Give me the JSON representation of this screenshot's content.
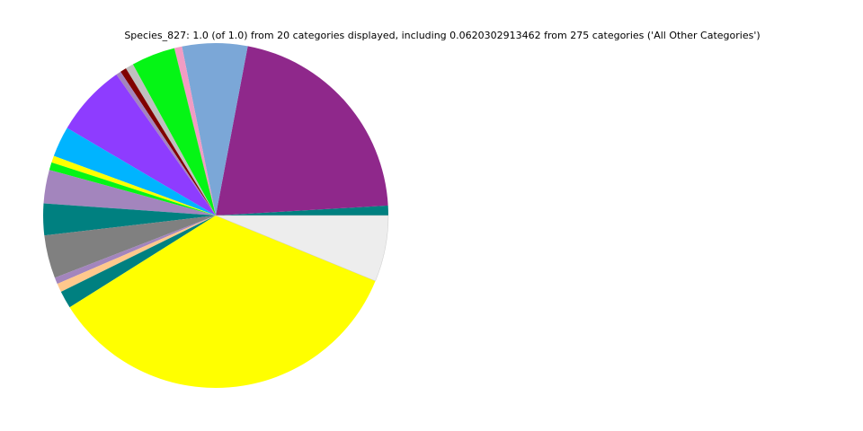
{
  "chart_data": {
    "type": "pie",
    "title": "Species_827: 1.0 (of 1.0) from 20 categories displayed, including 0.0620302913462 from 275 categories ('All Other Categories')",
    "start_angle_deg": 0,
    "direction": "counterclockwise",
    "legend": "none",
    "slices": [
      {
        "value": 0.0092,
        "color": "#008080"
      },
      {
        "value": 0.2111,
        "color": "#8f288b"
      },
      {
        "value": 0.0611,
        "color": "#7ba7d7"
      },
      {
        "value": 0.0072,
        "color": "#f19cc3"
      },
      {
        "value": 0.0411,
        "color": "#05f515"
      },
      {
        "value": 0.0075,
        "color": "#c0c0c0"
      },
      {
        "value": 0.0058,
        "color": "#800000"
      },
      {
        "value": 0.0047,
        "color": "#a385bd"
      },
      {
        "value": 0.0675,
        "color": "#8e3cff"
      },
      {
        "value": 0.0286,
        "color": "#00b4ff"
      },
      {
        "value": 0.0064,
        "color": "#ffff00"
      },
      {
        "value": 0.0072,
        "color": "#05f515"
      },
      {
        "value": 0.0314,
        "color": "#a385bd"
      },
      {
        "value": 0.0297,
        "color": "#008080"
      },
      {
        "value": 0.0403,
        "color": "#808080"
      },
      {
        "value": 0.0061,
        "color": "#a385bd"
      },
      {
        "value": 0.0081,
        "color": "#ffc88c"
      },
      {
        "value": 0.0164,
        "color": "#008080"
      },
      {
        "value": 0.3486,
        "color": "#ffff00"
      },
      {
        "value": 0.062,
        "color": "#ededed"
      }
    ]
  }
}
